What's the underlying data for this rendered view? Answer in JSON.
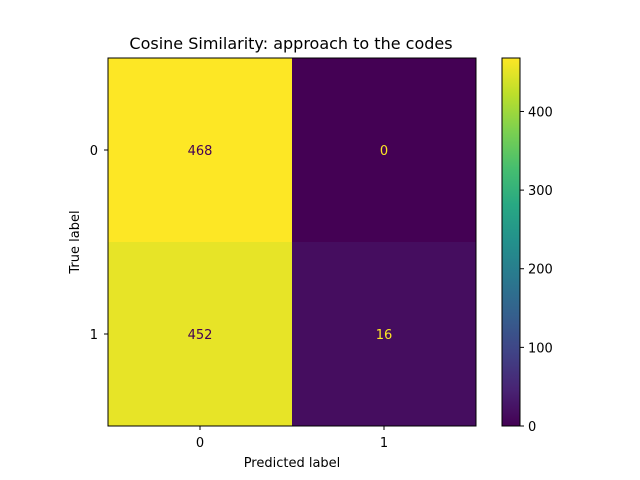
{
  "chart_data": {
    "type": "heatmap",
    "title": "Cosine Similarity: approach to the codes",
    "xlabel": "Predicted label",
    "ylabel": "True label",
    "x_categories": [
      "0",
      "1"
    ],
    "y_categories": [
      "0",
      "1"
    ],
    "values": [
      [
        468,
        0
      ],
      [
        452,
        16
      ]
    ],
    "colormap": "viridis",
    "color_range": [
      0,
      468
    ],
    "colorbar": {
      "ticks": [
        0,
        100,
        200,
        300,
        400
      ],
      "tick_labels": [
        "0",
        "100",
        "200",
        "300",
        "400"
      ]
    },
    "colors": {
      "low": "#440154",
      "high": "#fde725",
      "text_on_dark": "#fde725",
      "text_on_light": "#440154"
    },
    "grid": false
  }
}
